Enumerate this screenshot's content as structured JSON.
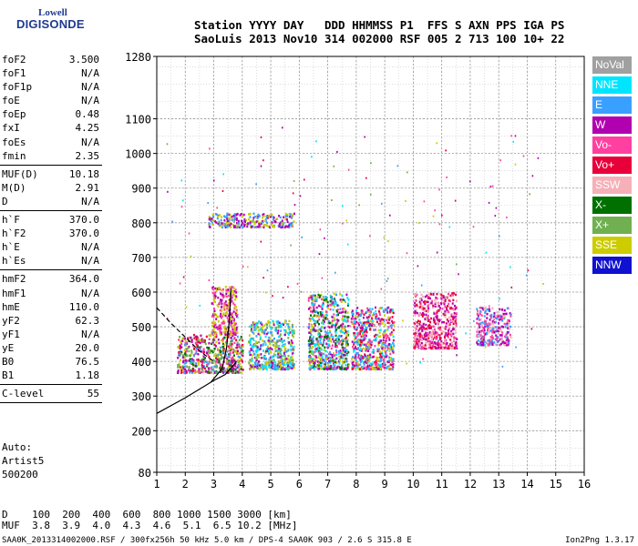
{
  "logo": {
    "line1": "Lowell",
    "line2": "DIGISONDE"
  },
  "header": {
    "line1": "Station YYYY DAY   DDD HHMMSS P1  FFS S AXN PPS IGA PS",
    "line2": "SaoLuis 2013 Nov10 314 002000 RSF 005 2 713 100 10+ 22"
  },
  "params_group1": [
    {
      "label": "foF2",
      "value": "3.500"
    },
    {
      "label": "foF1",
      "value": "N/A"
    },
    {
      "label": "foF1p",
      "value": "N/A"
    },
    {
      "label": "foE",
      "value": "N/A"
    },
    {
      "label": "foEp",
      "value": "0.48"
    },
    {
      "label": "fxI",
      "value": "4.25"
    },
    {
      "label": "foEs",
      "value": "N/A"
    },
    {
      "label": "fmin",
      "value": "2.35"
    }
  ],
  "params_group2": [
    {
      "label": "MUF(D)",
      "value": "10.18"
    },
    {
      "label": "M(D)",
      "value": "2.91"
    },
    {
      "label": "D",
      "value": "N/A"
    }
  ],
  "params_group3": [
    {
      "label": "h`F",
      "value": "370.0"
    },
    {
      "label": "h`F2",
      "value": "370.0"
    },
    {
      "label": "h`E",
      "value": "N/A"
    },
    {
      "label": "h`Es",
      "value": "N/A"
    }
  ],
  "params_group4": [
    {
      "label": "hmF2",
      "value": "364.0"
    },
    {
      "label": "hmF1",
      "value": "N/A"
    },
    {
      "label": "hmE",
      "value": "110.0"
    },
    {
      "label": "yF2",
      "value": "62.3"
    },
    {
      "label": "yF1",
      "value": "N/A"
    },
    {
      "label": "yE",
      "value": "20.0"
    },
    {
      "label": "B0",
      "value": "76.5"
    },
    {
      "label": "B1",
      "value": "1.18"
    }
  ],
  "params_group5": [
    {
      "label": "C-level",
      "value": "55"
    }
  ],
  "auto": {
    "line1": "Auto:",
    "line2": "Artist5",
    "line3": "500200"
  },
  "dtable": {
    "line1": "D    100  200  400  600  800 1000 1500 3000 [km]",
    "line2": "MUF  3.8  3.9  4.0  4.3  4.6  5.1  6.5 10.2 [MHz]"
  },
  "footer": {
    "left": "SAA0K_2013314002000.RSF / 300fx256h 50 kHz 5.0 km / DPS-4 SAA0K 903 / 2.6 S 315.8 E",
    "right": "Ion2Png 1.3.17"
  },
  "legend": [
    {
      "label": "NoVal",
      "color": "#a0a0a0"
    },
    {
      "label": "NNE",
      "color": "#00e5ff"
    },
    {
      "label": "E",
      "color": "#3aa0ff"
    },
    {
      "label": "W",
      "color": "#b000b0"
    },
    {
      "label": "Vo-",
      "color": "#ff40a0"
    },
    {
      "label": "Vo+",
      "color": "#e8003a"
    },
    {
      "label": "SSW",
      "color": "#f5b0b8"
    },
    {
      "label": "X-",
      "color": "#007000"
    },
    {
      "label": "X+",
      "color": "#70b050"
    },
    {
      "label": "SSE",
      "color": "#cccc00"
    },
    {
      "label": "NNW",
      "color": "#1010d0"
    }
  ],
  "chart_data": {
    "type": "scatter",
    "xlim": [
      1,
      16
    ],
    "ylim": [
      80,
      1280
    ],
    "x_ticks": [
      1,
      2,
      3,
      4,
      5,
      6,
      7,
      8,
      9,
      10,
      11,
      12,
      13,
      14,
      15,
      16
    ],
    "y_ticks": [
      80,
      200,
      300,
      400,
      500,
      600,
      700,
      800,
      900,
      1000,
      1100,
      1280
    ],
    "grid": true,
    "clusters": [
      {
        "name": "F trace 1.8-4.0 MHz",
        "x": [
          1.7,
          4.0
        ],
        "y": [
          370,
          480
        ],
        "colors": [
          "#ff40a0",
          "#b000b0",
          "#cccc00",
          "#70b050",
          "#007000",
          "#e8003a",
          "#3aa0ff"
        ]
      },
      {
        "name": "F trace 3.0-3.8 MHz upper",
        "x": [
          2.9,
          3.8
        ],
        "y": [
          480,
          620
        ],
        "colors": [
          "#ff40a0",
          "#cccc00",
          "#b000b0"
        ]
      },
      {
        "name": "4.2-5.8 MHz",
        "x": [
          4.2,
          5.8
        ],
        "y": [
          380,
          520
        ],
        "colors": [
          "#cccc00",
          "#3aa0ff",
          "#b000b0",
          "#70b050",
          "#00e5ff"
        ]
      },
      {
        "name": "6.3-7.7 MHz",
        "x": [
          6.3,
          7.7
        ],
        "y": [
          380,
          600
        ],
        "colors": [
          "#cccc00",
          "#b000b0",
          "#3aa0ff",
          "#ff40a0",
          "#00e5ff",
          "#007000"
        ]
      },
      {
        "name": "7.8-9.3 MHz",
        "x": [
          7.8,
          9.3
        ],
        "y": [
          380,
          560
        ],
        "colors": [
          "#00e5ff",
          "#3aa0ff",
          "#cccc00",
          "#b000b0",
          "#ff40a0",
          "#e8003a"
        ]
      },
      {
        "name": "10.0-11.5 MHz",
        "x": [
          10.0,
          11.5
        ],
        "y": [
          440,
          600
        ],
        "colors": [
          "#f5b0b8",
          "#ff40a0",
          "#e8003a",
          "#b000b0"
        ]
      },
      {
        "name": "12.2-13.4 MHz",
        "x": [
          12.2,
          13.4
        ],
        "y": [
          450,
          560
        ],
        "colors": [
          "#ff40a0",
          "#b000b0",
          "#f5b0b8",
          "#3aa0ff"
        ]
      },
      {
        "name": "high echoes 2.8-5.8 MHz",
        "x": [
          2.8,
          5.8
        ],
        "y": [
          790,
          830
        ],
        "colors": [
          "#cccc00",
          "#3aa0ff",
          "#b000b0"
        ]
      }
    ],
    "profile_solid": {
      "x": [
        1.0,
        2.0,
        2.5,
        3.0,
        3.4,
        3.6,
        3.8
      ],
      "y": [
        250,
        295,
        320,
        345,
        362,
        380,
        400
      ]
    },
    "profile_dashed": {
      "x": [
        1.0,
        1.5,
        2.0,
        2.5,
        3.0
      ],
      "y": [
        555,
        510,
        470,
        430,
        400
      ]
    },
    "trace_curve": {
      "x": [
        2.9,
        3.1,
        3.3,
        3.45,
        3.55,
        3.6
      ],
      "y": [
        340,
        360,
        380,
        440,
        520,
        610
      ]
    }
  }
}
